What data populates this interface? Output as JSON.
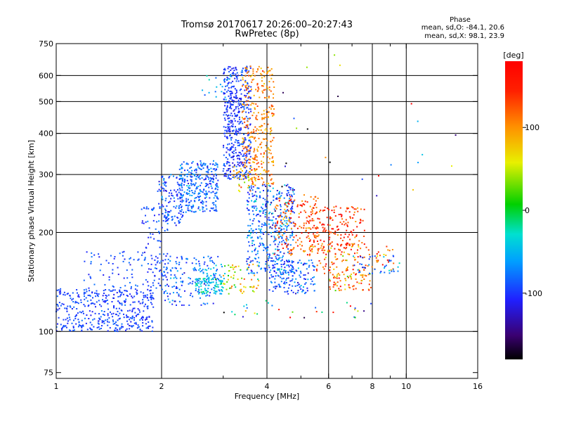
{
  "chart_data": {
    "type": "scatter",
    "title": "Tromsø 20170617 20:26:00–20:27:43",
    "subtitle": "RwPretec (8p)",
    "xlabel": "Frequency [MHz]",
    "ylabel": "Stationary phase Virtual Height [km]",
    "x_scale": "log",
    "y_scale": "log",
    "xlim": [
      1,
      16
    ],
    "ylim": [
      72,
      750
    ],
    "x_ticks": [
      {
        "value": 1,
        "label": "1"
      },
      {
        "value": 2,
        "label": "2"
      },
      {
        "value": 4,
        "label": "4"
      },
      {
        "value": 6,
        "label": "6"
      },
      {
        "value": 8,
        "label": "8"
      },
      {
        "value": 10,
        "label": "10"
      },
      {
        "value": 16,
        "label": "16"
      }
    ],
    "x_minor_ticks": [
      3,
      5,
      7,
      9
    ],
    "x_grid": [
      2,
      4,
      6,
      8,
      10
    ],
    "y_ticks": [
      {
        "value": 75,
        "label": "75"
      },
      {
        "value": 100,
        "label": "100"
      },
      {
        "value": 200,
        "label": "200"
      },
      {
        "value": 300,
        "label": "300"
      },
      {
        "value": 400,
        "label": "400"
      },
      {
        "value": 500,
        "label": "500"
      },
      {
        "value": 600,
        "label": "600"
      },
      {
        "value": 750,
        "label": "750"
      }
    ],
    "y_grid": [
      100,
      200,
      300,
      400,
      500,
      600
    ],
    "grid": true,
    "color_encoding": "phase [deg]",
    "colorbar": {
      "label": "[deg]",
      "range": [
        -180,
        180
      ],
      "ticks": [
        {
          "value": 100,
          "label": "100"
        },
        {
          "value": 0,
          "label": "0"
        },
        {
          "value": -100,
          "label": "-100"
        }
      ]
    },
    "phase_stats": {
      "heading": "Phase",
      "line_o": "mean, sd,O: -84.1, 20.6",
      "line_x": "mean, sd,X:  98.1, 23.9"
    },
    "clusters": [
      {
        "x_range": [
          1.0,
          1.9
        ],
        "y_range": [
          100,
          135
        ],
        "phase_mean": -95,
        "phase_sd": 10,
        "count": 420
      },
      {
        "x_range": [
          1.2,
          2.0
        ],
        "y_range": [
          135,
          175
        ],
        "phase_mean": -95,
        "phase_sd": 12,
        "count": 90
      },
      {
        "x_range": [
          1.75,
          2.1
        ],
        "y_range": [
          150,
          240
        ],
        "phase_mean": -95,
        "phase_sd": 12,
        "count": 70
      },
      {
        "x_range": [
          1.95,
          2.3
        ],
        "y_range": [
          210,
          300
        ],
        "phase_mean": -90,
        "phase_sd": 15,
        "count": 130
      },
      {
        "x_range": [
          2.25,
          2.9
        ],
        "y_range": [
          230,
          330
        ],
        "phase_mean": -80,
        "phase_sd": 18,
        "count": 300
      },
      {
        "x_range": [
          2.0,
          2.9
        ],
        "y_range": [
          120,
          170
        ],
        "phase_mean": -85,
        "phase_sd": 20,
        "count": 150
      },
      {
        "x_range": [
          2.5,
          3.0
        ],
        "y_range": [
          130,
          145
        ],
        "phase_mean": -40,
        "phase_sd": 20,
        "count": 90
      },
      {
        "x_range": [
          2.55,
          3.05
        ],
        "y_range": [
          140,
          160
        ],
        "phase_mean": -55,
        "phase_sd": 15,
        "count": 40
      },
      {
        "x_range": [
          3.0,
          3.6
        ],
        "y_range": [
          290,
          640
        ],
        "phase_mean": -100,
        "phase_sd": 12,
        "count": 480
      },
      {
        "x_range": [
          3.4,
          4.2
        ],
        "y_range": [
          280,
          640
        ],
        "phase_mean": 105,
        "phase_sd": 18,
        "count": 320
      },
      {
        "x_range": [
          3.2,
          3.8
        ],
        "y_range": [
          265,
          320
        ],
        "phase_mean": 85,
        "phase_sd": 30,
        "count": 40
      },
      {
        "x_range": [
          3.0,
          3.8
        ],
        "y_range": [
          130,
          160
        ],
        "phase_mean": 60,
        "phase_sd": 40,
        "count": 60
      },
      {
        "x_range": [
          3.5,
          4.8
        ],
        "y_range": [
          150,
          280
        ],
        "phase_mean": -80,
        "phase_sd": 25,
        "count": 420
      },
      {
        "x_range": [
          4.2,
          5.6
        ],
        "y_range": [
          170,
          260
        ],
        "phase_mean": 130,
        "phase_sd": 30,
        "count": 170
      },
      {
        "x_range": [
          4.0,
          5.5
        ],
        "y_range": [
          130,
          165
        ],
        "phase_mean": -85,
        "phase_sd": 20,
        "count": 160
      },
      {
        "x_range": [
          5.3,
          7.6
        ],
        "y_range": [
          175,
          240
        ],
        "phase_mean": 140,
        "phase_sd": 25,
        "count": 170
      },
      {
        "x_range": [
          5.5,
          9.2
        ],
        "y_range": [
          150,
          185
        ],
        "phase_mean": 120,
        "phase_sd": 35,
        "count": 120
      },
      {
        "x_range": [
          6.0,
          8.0
        ],
        "y_range": [
          133,
          150
        ],
        "phase_mean": 110,
        "phase_sd": 40,
        "count": 70
      },
      {
        "x_range": [
          7.0,
          9.6
        ],
        "y_range": [
          150,
          170
        ],
        "phase_mean": -85,
        "phase_sd": 25,
        "count": 40
      },
      {
        "x_range": [
          2.8,
          8.0
        ],
        "y_range": [
          110,
          125
        ],
        "phase_mean": 0,
        "phase_sd": 120,
        "count": 30
      },
      {
        "x_range": [
          2.6,
          3.2
        ],
        "y_range": [
          500,
          600
        ],
        "phase_mean": -60,
        "phase_sd": 30,
        "count": 20
      },
      {
        "x_range": [
          4.0,
          15.0
        ],
        "y_range": [
          250,
          700
        ],
        "phase_mean": 0,
        "phase_sd": 120,
        "count": 25
      }
    ]
  }
}
